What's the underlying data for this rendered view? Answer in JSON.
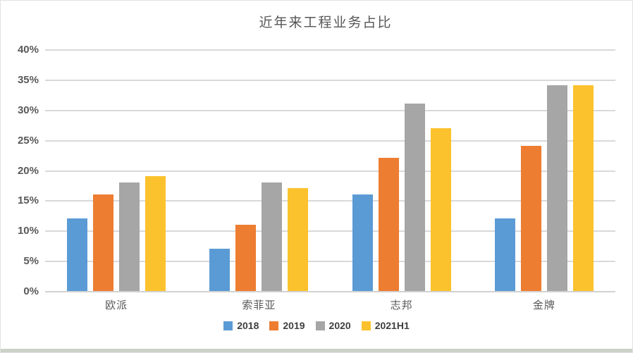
{
  "chart_data": {
    "type": "bar",
    "title": "近年来工程业务占比",
    "categories": [
      "欧派",
      "索菲亚",
      "志邦",
      "金牌"
    ],
    "series": [
      {
        "name": "2018",
        "color": "#5B9BD5",
        "values": [
          12,
          7,
          16,
          12
        ]
      },
      {
        "name": "2019",
        "color": "#ED7D31",
        "values": [
          16,
          11,
          22,
          24
        ]
      },
      {
        "name": "2020",
        "color": "#A6A6A6",
        "values": [
          18,
          18,
          31,
          34
        ]
      },
      {
        "name": "2021H1",
        "color": "#FCC22D",
        "values": [
          19,
          17,
          27,
          34
        ]
      }
    ],
    "value_unit": "%",
    "xlabel": "",
    "ylabel": "",
    "ylim": [
      0,
      40
    ],
    "ytick_step": 5,
    "ytick_labels": [
      "0%",
      "5%",
      "10%",
      "15%",
      "20%",
      "25%",
      "30%",
      "35%",
      "40%"
    ],
    "grid": "horizontal",
    "legend_position": "bottom-center",
    "colors": {
      "gridline": "#D9D9D9",
      "axis_text": "#595959",
      "title_text": "#565656",
      "legend_text": "#404040",
      "background": "#FFFFFF",
      "frame_border": "#E2E2E2",
      "bottom_strip": "#CBD1C6"
    }
  }
}
